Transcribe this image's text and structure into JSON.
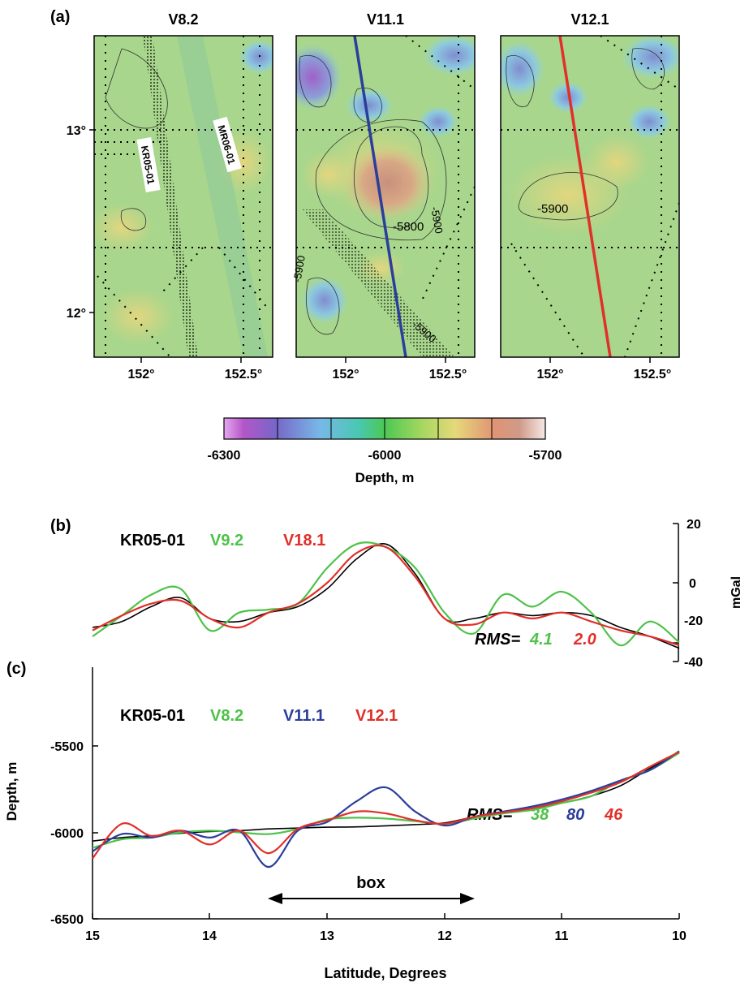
{
  "colors": {
    "black": "#000000",
    "green": "#4ec24a",
    "blue": "#2c3e9c",
    "red": "#e0302a",
    "map_base": "#a6d68a"
  },
  "panel_a": {
    "label": "(a)",
    "maps": [
      {
        "title": "V8.2",
        "track_labels": [
          "KR05-01",
          "MR06-01"
        ],
        "contour_labels": []
      },
      {
        "title": "V11.1",
        "track_labels": [],
        "contour_labels": [
          "-5800",
          "-5900",
          "-5900",
          "-5900"
        ]
      },
      {
        "title": "V12.1",
        "track_labels": [],
        "contour_labels": [
          "-5900"
        ]
      }
    ],
    "lat_ticks": [
      "13°",
      "12°"
    ],
    "lon_ticks": [
      "152°",
      "152.5°"
    ],
    "colorbar": {
      "ticks": [
        "-6300",
        "-6000",
        "-5700"
      ],
      "label": "Depth, m"
    }
  },
  "panel_b": {
    "label": "(b)",
    "legend": [
      {
        "text": "KR05-01",
        "color": "#000000"
      },
      {
        "text": "V9.2",
        "color": "#4ec24a"
      },
      {
        "text": "V18.1",
        "color": "#e0302a"
      }
    ],
    "rms_label": "RMS=",
    "rms_values": [
      {
        "text": "4.1",
        "color": "#4ec24a"
      },
      {
        "text": "2.0",
        "color": "#e0302a"
      }
    ],
    "y_ticks": [
      "20",
      "0",
      "-20",
      "-40"
    ],
    "ylabel": "mGal"
  },
  "panel_c": {
    "label": "(c)",
    "legend": [
      {
        "text": "KR05-01",
        "color": "#000000"
      },
      {
        "text": "V8.2",
        "color": "#4ec24a"
      },
      {
        "text": "V11.1",
        "color": "#2c3e9c"
      },
      {
        "text": "V12.1",
        "color": "#e0302a"
      }
    ],
    "rms_label": "RMS=",
    "rms_values": [
      {
        "text": "38",
        "color": "#4ec24a"
      },
      {
        "text": "80",
        "color": "#2c3e9c"
      },
      {
        "text": "46",
        "color": "#e0302a"
      }
    ],
    "box_label": "box",
    "y_ticks": [
      "-5500",
      "-6000",
      "-6500"
    ],
    "ylabel": "Depth, m",
    "x_ticks": [
      "15",
      "14",
      "13",
      "12",
      "11",
      "10"
    ],
    "xlabel": "Latitude, Degrees"
  },
  "chart_data": [
    {
      "type": "heatmap",
      "title": "V8.2 / V11.1 / V12.1",
      "xlabel": "",
      "ylabel": "",
      "x_range": [
        151.75,
        152.65
      ],
      "y_range": [
        11.75,
        13.5
      ],
      "colorbar_range": [
        -6300,
        -5700
      ],
      "colorbar_label": "Depth, m"
    },
    {
      "type": "line",
      "title": "",
      "xlabel": "Latitude, Degrees",
      "ylabel": "mGal",
      "xlim": [
        15,
        10
      ],
      "ylim": [
        -40,
        20
      ],
      "x": [
        15,
        14.75,
        14.5,
        14.25,
        14,
        13.75,
        13.5,
        13.25,
        13,
        12.75,
        12.5,
        12.25,
        12,
        11.75,
        11.5,
        11.25,
        11,
        10.75,
        10.5,
        10.25,
        10
      ],
      "series": [
        {
          "name": "KR05-01",
          "values": [
            -15,
            -13,
            -8,
            -5,
            -12,
            -13,
            -10,
            -8,
            -2,
            8,
            13,
            3,
            -12,
            -12,
            -10,
            -11,
            -10,
            -11,
            -15,
            -18,
            -22
          ]
        },
        {
          "name": "V9.2",
          "values": [
            -18,
            -11,
            -4,
            -2,
            -16,
            -10,
            -9,
            -7,
            5,
            13,
            12,
            5,
            -10,
            -17,
            -4,
            -8,
            -3,
            -10,
            -21,
            -13,
            -20
          ]
        },
        {
          "name": "V18.1",
          "values": [
            -16,
            -11,
            -7,
            -6,
            -12,
            -15,
            -10,
            -7,
            0,
            10,
            12,
            2,
            -12,
            -14,
            -10,
            -12,
            -10,
            -13,
            -16,
            -18,
            -21
          ]
        }
      ],
      "rms": {
        "V9.2": 4.1,
        "V18.1": 2.0
      }
    },
    {
      "type": "line",
      "title": "",
      "xlabel": "Latitude, Degrees",
      "ylabel": "Depth, m",
      "xlim": [
        15,
        10
      ],
      "ylim": [
        -6500,
        -5300
      ],
      "x": [
        15,
        14.75,
        14.5,
        14.25,
        14,
        13.75,
        13.5,
        13.25,
        13,
        12.75,
        12.5,
        12.25,
        12,
        11.75,
        11.5,
        11.25,
        11,
        10.75,
        10.5,
        10.25,
        10
      ],
      "series": [
        {
          "name": "KR05-01",
          "values": [
            -6050,
            -6030,
            -6020,
            -6005,
            -5995,
            -5990,
            -5980,
            -5975,
            -5970,
            -5968,
            -5962,
            -5955,
            -5945,
            -5910,
            -5885,
            -5860,
            -5830,
            -5790,
            -5730,
            -5630,
            -5540
          ]
        },
        {
          "name": "V8.2",
          "values": [
            -6090,
            -6040,
            -6030,
            -6000,
            -5990,
            -6000,
            -6010,
            -5980,
            -5925,
            -5915,
            -5920,
            -5935,
            -5950,
            -5920,
            -5890,
            -5870,
            -5830,
            -5790,
            -5700,
            -5640,
            -5540
          ]
        },
        {
          "name": "V11.1",
          "values": [
            -6110,
            -6010,
            -6030,
            -5990,
            -6030,
            -5990,
            -6200,
            -5990,
            -5940,
            -5820,
            -5740,
            -5880,
            -5960,
            -5910,
            -5880,
            -5850,
            -5810,
            -5760,
            -5700,
            -5640,
            -5530
          ]
        },
        {
          "name": "V12.1",
          "values": [
            -6150,
            -5950,
            -6020,
            -5990,
            -6070,
            -5990,
            -6120,
            -5980,
            -5930,
            -5880,
            -5890,
            -5930,
            -5950,
            -5910,
            -5885,
            -5860,
            -5820,
            -5770,
            -5710,
            -5620,
            -5535
          ]
        }
      ],
      "annotation": {
        "text": "box",
        "from": 13.5,
        "to": 11.75
      },
      "rms": {
        "V8.2": 38,
        "V11.1": 80,
        "V12.1": 46
      }
    }
  ]
}
